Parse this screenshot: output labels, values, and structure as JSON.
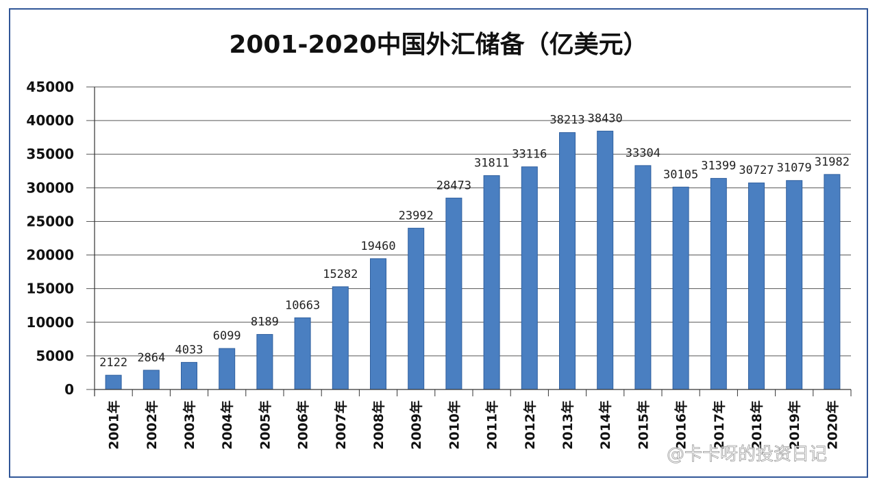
{
  "chart_data": {
    "type": "bar",
    "title": "2001-2020中国外汇储备（亿美元）",
    "xlabel": "",
    "ylabel": "",
    "ylim": [
      0,
      45000
    ],
    "yticks": [
      "0",
      "5000",
      "10000",
      "15000",
      "20000",
      "25000",
      "30000",
      "35000",
      "40000",
      "45000"
    ],
    "grid": true,
    "legend": "none",
    "bar_color": "#4a7fc1",
    "categories": [
      "2001年",
      "2002年",
      "2003年",
      "2004年",
      "2005年",
      "2006年",
      "2007年",
      "2008年",
      "2009年",
      "2010年",
      "2011年",
      "2012年",
      "2013年",
      "2014年",
      "2015年",
      "2016年",
      "2017年",
      "2018年",
      "2019年",
      "2020年"
    ],
    "values": [
      2122,
      2864,
      4033,
      6099,
      8189,
      10663,
      15282,
      19460,
      23992,
      28473,
      31811,
      33116,
      38213,
      38430,
      33304,
      30105,
      31399,
      30727,
      31079,
      31982
    ]
  },
  "watermark": "@卡卡呀的投资日记"
}
